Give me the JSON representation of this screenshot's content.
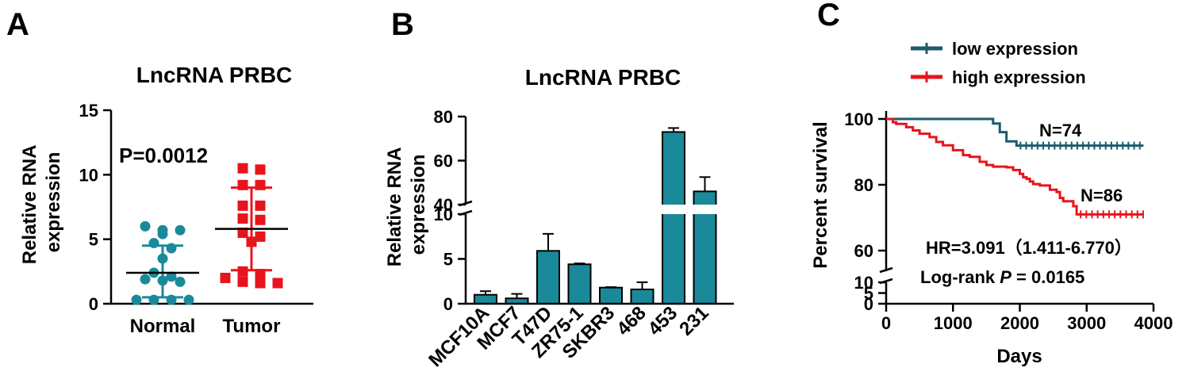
{
  "panels": [
    {
      "letter": "A"
    },
    {
      "letter": "B"
    },
    {
      "letter": "C"
    }
  ],
  "chart_data": [
    {
      "type": "scatter",
      "panel": "A",
      "title": "LncRNA PRBC",
      "ylabel_lines": [
        "Relative RNA",
        "expression"
      ],
      "xlabel": "",
      "ylim": [
        0,
        15
      ],
      "yticks": [
        0,
        5,
        10,
        15
      ],
      "annotation": "P=0.0012",
      "colors": {
        "Normal": "#1a8a9a",
        "Tumor": "#e8141c"
      },
      "groups": [
        {
          "name": "Normal",
          "mean": 2.4,
          "sd_low": 0.5,
          "sd_high": 4.5,
          "values": [
            6.0,
            5.7,
            5.7,
            5.4,
            4.7,
            4.3,
            3.5,
            2.4,
            2.1,
            1.9,
            1.8,
            1.7,
            0.3,
            0.3,
            0.3,
            0.3
          ]
        },
        {
          "name": "Tumor",
          "mean": 5.8,
          "sd_low": 2.6,
          "sd_high": 9.0,
          "values": [
            10.5,
            10.4,
            9.2,
            9.2,
            7.6,
            7.6,
            6.6,
            6.5,
            5.5,
            5.2,
            4.8,
            2.5,
            2.3,
            2.0,
            1.7,
            1.6,
            1.6
          ]
        }
      ]
    },
    {
      "type": "bar",
      "panel": "B",
      "title": "LncRNA PRBC",
      "ylabel_lines": [
        "Relative RNA",
        "expression"
      ],
      "xlabel": "",
      "y_segments": [
        {
          "range": [
            0,
            10
          ],
          "ticks": [
            0,
            5,
            10
          ]
        },
        {
          "range": [
            40,
            80
          ],
          "ticks": [
            40,
            60,
            80
          ]
        }
      ],
      "bar_color": "#1a8a9a",
      "categories": [
        "MCF10A",
        "MCF7",
        "T47D",
        "ZR75-1",
        "SKBR3",
        "468",
        "453",
        "231"
      ],
      "values": [
        1.0,
        0.6,
        5.9,
        4.4,
        1.8,
        1.6,
        73.0,
        46.0
      ],
      "errors": [
        0.4,
        0.5,
        1.9,
        0.1,
        0.05,
        0.8,
        1.8,
        6.5
      ]
    },
    {
      "type": "line",
      "panel": "C",
      "xlabel": "Days",
      "ylabel": "Percent survival",
      "xlim": [
        0,
        4000
      ],
      "xticks": [
        0,
        1000,
        2000,
        3000,
        4000
      ],
      "y_segments": [
        {
          "range": [
            0,
            10
          ],
          "ticks": [
            0,
            5,
            10
          ]
        },
        {
          "range": [
            60,
            100
          ],
          "ticks": [
            60,
            80,
            100
          ]
        }
      ],
      "legend_position": "top",
      "series": [
        {
          "name": "low expression",
          "color": "#1c5c6e",
          "label": "N=74",
          "points": [
            [
              0,
              100
            ],
            [
              1600,
              100
            ],
            [
              1600,
              98.6
            ],
            [
              1700,
              98.6
            ],
            [
              1700,
              96.0
            ],
            [
              1800,
              96.0
            ],
            [
              1800,
              93.2
            ],
            [
              1950,
              93.2
            ],
            [
              1950,
              91.9
            ],
            [
              3850,
              91.9
            ]
          ]
        },
        {
          "name": "high expression",
          "color": "#e8141c",
          "label": "N=86",
          "points": [
            [
              0,
              100
            ],
            [
              100,
              99
            ],
            [
              150,
              98.5
            ],
            [
              300,
              97.5
            ],
            [
              400,
              96.5
            ],
            [
              500,
              95.5
            ],
            [
              650,
              94.5
            ],
            [
              750,
              93
            ],
            [
              850,
              92
            ],
            [
              1000,
              90.5
            ],
            [
              1150,
              89
            ],
            [
              1250,
              88.5
            ],
            [
              1400,
              87
            ],
            [
              1500,
              86
            ],
            [
              1600,
              85.5
            ],
            [
              1800,
              85.3
            ],
            [
              1900,
              84.5
            ],
            [
              2000,
              83.3
            ],
            [
              2050,
              82.3
            ],
            [
              2100,
              81.8
            ],
            [
              2150,
              81
            ],
            [
              2200,
              80.2
            ],
            [
              2300,
              79.8
            ],
            [
              2450,
              78.5
            ],
            [
              2550,
              77.8
            ],
            [
              2600,
              76
            ],
            [
              2650,
              75
            ],
            [
              2800,
              73.5
            ],
            [
              2850,
              71
            ],
            [
              3850,
              71
            ]
          ]
        }
      ],
      "annotations": {
        "hr": "HR=3.091（1.411-6.770）",
        "logrank_prefix": "Log-rank ",
        "logrank_p": "P",
        "logrank_suffix": " = 0.0165"
      }
    }
  ]
}
